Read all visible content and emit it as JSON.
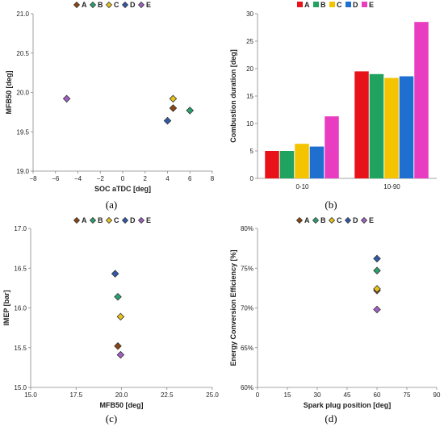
{
  "colors": {
    "A": "#e8131a",
    "B": "#1fa35f",
    "C": "#f5c400",
    "D": "#1f6fd1",
    "E": "#e83dc0",
    "markerA": "#8b4513",
    "markerB": "#2aa070",
    "markerC": "#e6c21a",
    "markerD": "#2e5aa8",
    "markerE": "#a060c0"
  },
  "chart_data": [
    {
      "type": "scatter",
      "panel_label": "(a)",
      "xlabel": "SOC aTDC [deg]",
      "ylabel": "MFB50 [deg]",
      "xlim": [
        -8,
        8
      ],
      "ylim": [
        19.0,
        21.0
      ],
      "xticks": [
        "−8",
        "−6",
        "−4",
        "−2",
        "0",
        "2",
        "4",
        "6",
        "8"
      ],
      "yticks": [
        "19.0",
        "19.5",
        "20.0",
        "20.5",
        "21.0"
      ],
      "legend": [
        "A",
        "B",
        "C",
        "D",
        "E"
      ],
      "points": [
        {
          "series": "A",
          "x": 4.5,
          "y": 19.8
        },
        {
          "series": "B",
          "x": 6.0,
          "y": 19.77
        },
        {
          "series": "C",
          "x": 4.5,
          "y": 19.92
        },
        {
          "series": "D",
          "x": 4.0,
          "y": 19.64
        },
        {
          "series": "E",
          "x": -5.0,
          "y": 19.92
        }
      ]
    },
    {
      "type": "bar",
      "panel_label": "(b)",
      "xlabel": "",
      "ylabel": "Combustion duration [deg]",
      "categories": [
        "0-10",
        "10-90"
      ],
      "ylim": [
        0,
        30
      ],
      "yticks": [
        "0",
        "5",
        "10",
        "15",
        "20",
        "25",
        "30"
      ],
      "series": [
        {
          "name": "A",
          "values": [
            5.0,
            19.5
          ]
        },
        {
          "name": "B",
          "values": [
            5.0,
            19.0
          ]
        },
        {
          "name": "C",
          "values": [
            6.3,
            18.3
          ]
        },
        {
          "name": "D",
          "values": [
            5.8,
            18.6
          ]
        },
        {
          "name": "E",
          "values": [
            11.3,
            28.5
          ]
        }
      ]
    },
    {
      "type": "scatter",
      "panel_label": "(c)",
      "xlabel": "MFB50 [deg]",
      "ylabel": "IMEP [bar]",
      "xlim": [
        15.0,
        25.0
      ],
      "ylim": [
        15.0,
        17.0
      ],
      "xticks": [
        "15.0",
        "17.5",
        "20.0",
        "22.5",
        "25.0"
      ],
      "yticks": [
        "15.0",
        "15.5",
        "16.0",
        "16.5",
        "17.0"
      ],
      "legend": [
        "A",
        "B",
        "C",
        "D",
        "E"
      ],
      "points": [
        {
          "series": "A",
          "x": 19.8,
          "y": 15.52
        },
        {
          "series": "B",
          "x": 19.8,
          "y": 16.14
        },
        {
          "series": "C",
          "x": 19.95,
          "y": 15.89
        },
        {
          "series": "D",
          "x": 19.65,
          "y": 16.43
        },
        {
          "series": "E",
          "x": 19.95,
          "y": 15.41
        }
      ]
    },
    {
      "type": "scatter",
      "panel_label": "(d)",
      "xlabel": "Spark plug position [deg]",
      "ylabel": "Energy Conversion Efficiency [%]",
      "xlim": [
        0,
        90
      ],
      "ylim": [
        60,
        80
      ],
      "xticks": [
        "0",
        "15",
        "30",
        "45",
        "60",
        "75",
        "90"
      ],
      "yticks": [
        "60%",
        "65%",
        "70%",
        "75%",
        "80%"
      ],
      "legend": [
        "A",
        "B",
        "C",
        "D",
        "E"
      ],
      "points": [
        {
          "series": "A",
          "x": 60,
          "y": 72.2
        },
        {
          "series": "B",
          "x": 60,
          "y": 74.7
        },
        {
          "series": "C",
          "x": 60,
          "y": 72.4
        },
        {
          "series": "D",
          "x": 60,
          "y": 76.2
        },
        {
          "series": "E",
          "x": 60,
          "y": 69.8
        }
      ]
    }
  ]
}
